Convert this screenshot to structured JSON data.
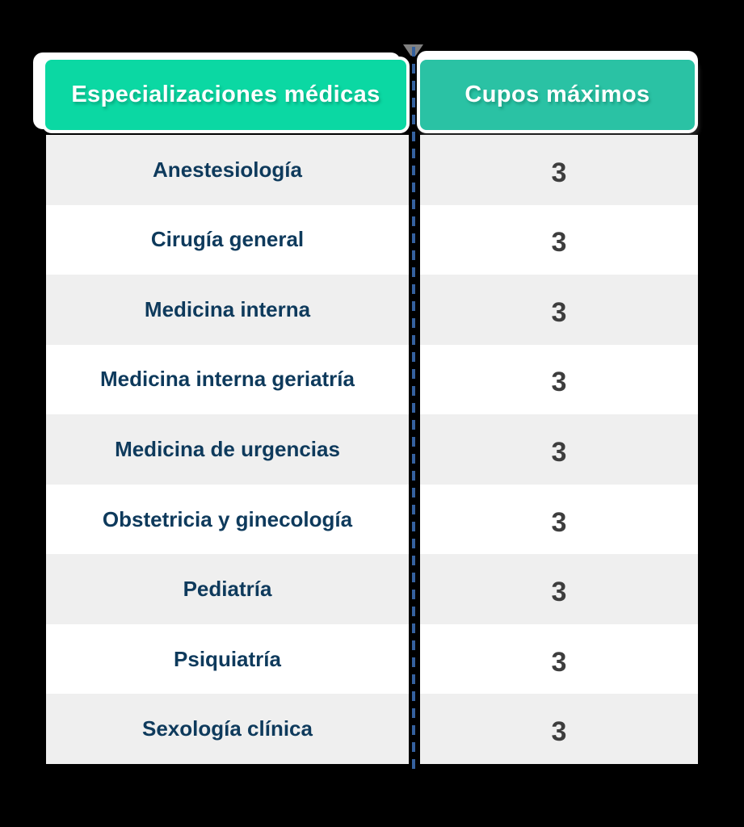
{
  "colors": {
    "header_left_green": "#0bd8a3",
    "header_right_teal": "#2ac2a4",
    "row_alt_gray": "#efefef",
    "row_white": "#ffffff",
    "label_navy": "#0e3a5c",
    "value_gray": "#3d3d3d",
    "dash_blue": "#35619f",
    "header_text_white": "#ffffff"
  },
  "table": {
    "columns": [
      {
        "header": "Especializaciones médicas"
      },
      {
        "header": "Cupos máximos"
      }
    ],
    "rows": [
      {
        "especializacion": "Anestesiología",
        "cupos": "3"
      },
      {
        "especializacion": "Cirugía general",
        "cupos": "3"
      },
      {
        "especializacion": "Medicina interna",
        "cupos": "3"
      },
      {
        "especializacion": "Medicina interna geriatría",
        "cupos": "3"
      },
      {
        "especializacion": "Medicina de urgencias",
        "cupos": "3"
      },
      {
        "especializacion": "Obstetricia y ginecología",
        "cupos": "3"
      },
      {
        "especializacion": "Pediatría",
        "cupos": "3"
      },
      {
        "especializacion": "Psiquiatría",
        "cupos": "3"
      },
      {
        "especializacion": "Sexología clínica",
        "cupos": "3"
      }
    ]
  },
  "chart_data": {
    "type": "table",
    "title": "",
    "columns": [
      "Especializaciones médicas",
      "Cupos máximos"
    ],
    "categories": [
      "Anestesiología",
      "Cirugía general",
      "Medicina interna",
      "Medicina interna geriatría",
      "Medicina de urgencias",
      "Obstetricia y ginecología",
      "Pediatría",
      "Psiquiatría",
      "Sexología clínica"
    ],
    "values": [
      3,
      3,
      3,
      3,
      3,
      3,
      3,
      3,
      3
    ]
  }
}
